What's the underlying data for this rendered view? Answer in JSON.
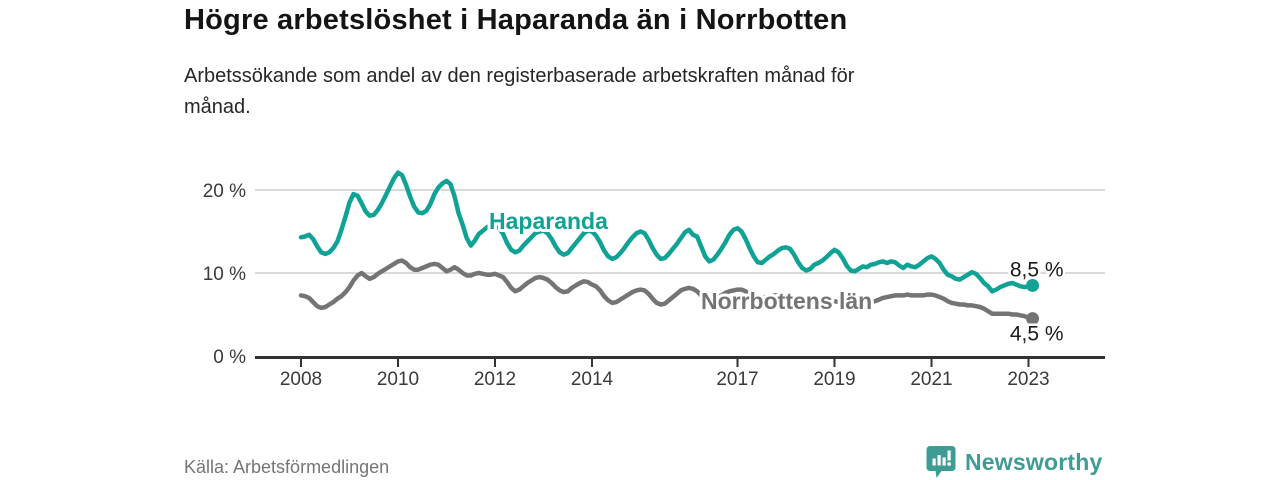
{
  "header": {
    "title": "Högre arbetslöshet i Haparanda än i Norrbotten",
    "subtitle_lines": [
      "Arbetssökande som andel av den registerbaserade arbetskraften månad för",
      "månad."
    ]
  },
  "footer": {
    "source": "Källa: Arbetsförmedlingen",
    "brand": "Newsworthy"
  },
  "colors": {
    "haparanda": "#10a295",
    "norrbotten": "#747474",
    "brand_teal": "#3e9c94",
    "grid": "#d9d9d9",
    "axis": "#333333",
    "tick_text": "#3a3a3a",
    "end_label": "#1a1a1a"
  },
  "chart_data": {
    "type": "line",
    "title": "Högre arbetslöshet i Haparanda än i Norrbotten",
    "xlabel": "",
    "ylabel": "Arbetssökande som andel av den registerbaserade arbetskraften (%)",
    "x_start_year": 2008,
    "x_resolution": "monthly",
    "first_point": "2008-01",
    "last_point": "2023-02",
    "ylim": [
      0,
      23
    ],
    "grid": "horizontal-only",
    "legend_position": "inline-labels",
    "xticks": [
      {
        "year": 2008,
        "label": "2008"
      },
      {
        "year": 2010,
        "label": "2010"
      },
      {
        "year": 2012,
        "label": "2012"
      },
      {
        "year": 2014,
        "label": "2014"
      },
      {
        "year": 2017,
        "label": "2017"
      },
      {
        "year": 2019,
        "label": "2019"
      },
      {
        "year": 2021,
        "label": "2021"
      },
      {
        "year": 2023,
        "label": "2023"
      }
    ],
    "yticks": [
      {
        "value": 0,
        "label": "0 %"
      },
      {
        "value": 10,
        "label": "10 %"
      },
      {
        "value": 20,
        "label": "20 %"
      }
    ],
    "series": [
      {
        "name": "Haparanda",
        "slug": "haparanda",
        "color_key": "haparanda",
        "annotation": "Haparanda",
        "end_label": "8,5 %",
        "end_value": 8.5,
        "monthly_values": [
          14.3,
          14.4,
          14.6,
          14.1,
          13.2,
          12.5,
          12.3,
          12.5,
          13.0,
          13.8,
          15.2,
          16.8,
          18.5,
          19.5,
          19.3,
          18.4,
          17.4,
          16.9,
          17.0,
          17.6,
          18.4,
          19.4,
          20.4,
          21.4,
          22.1,
          21.8,
          20.6,
          19.2,
          18.0,
          17.3,
          17.2,
          17.5,
          18.3,
          19.5,
          20.3,
          20.8,
          21.1,
          20.7,
          19.2,
          17.2,
          15.8,
          14.2,
          13.3,
          13.9,
          14.7,
          15.1,
          15.5,
          15.8,
          15.9,
          15.4,
          14.7,
          13.6,
          12.8,
          12.5,
          12.7,
          13.3,
          13.8,
          14.3,
          14.8,
          15.0,
          15.1,
          14.8,
          14.1,
          13.2,
          12.5,
          12.2,
          12.4,
          13.0,
          13.6,
          14.2,
          14.8,
          15.1,
          15.0,
          14.5,
          13.7,
          12.7,
          12.0,
          11.7,
          11.9,
          12.4,
          13.0,
          13.7,
          14.3,
          14.8,
          15.0,
          14.8,
          14.0,
          13.0,
          12.2,
          11.7,
          11.8,
          12.3,
          12.9,
          13.5,
          14.2,
          14.9,
          15.2,
          14.6,
          14.4,
          13.2,
          12.0,
          11.4,
          11.6,
          12.2,
          12.9,
          13.7,
          14.6,
          15.2,
          15.4,
          15.0,
          14.1,
          13.0,
          12.0,
          11.3,
          11.2,
          11.6,
          12.0,
          12.3,
          12.7,
          13.0,
          13.1,
          12.9,
          12.2,
          11.3,
          10.6,
          10.3,
          10.5,
          11.0,
          11.2,
          11.5,
          11.9,
          12.4,
          12.8,
          12.5,
          11.8,
          10.9,
          10.3,
          10.2,
          10.5,
          10.8,
          10.7,
          11.0,
          11.1,
          11.3,
          11.4,
          11.2,
          11.4,
          11.3,
          10.9,
          10.6,
          11.0,
          10.8,
          10.7,
          11.0,
          11.4,
          11.8,
          12.0,
          11.7,
          11.2,
          10.4,
          9.8,
          9.6,
          9.3,
          9.2,
          9.5,
          9.8,
          10.1,
          9.9,
          9.4,
          8.8,
          8.4,
          7.8,
          8.0,
          8.3,
          8.5,
          8.7,
          8.8,
          8.6,
          8.4,
          8.3,
          8.4,
          8.5
        ]
      },
      {
        "name": "Norrbottens län",
        "slug": "norrbotten",
        "color_key": "norrbotten",
        "annotation": "Norrbottens län",
        "end_label": "4,5 %",
        "end_value": 4.5,
        "monthly_values": [
          7.3,
          7.2,
          7.0,
          6.5,
          6.0,
          5.8,
          5.9,
          6.2,
          6.5,
          6.9,
          7.2,
          7.7,
          8.3,
          9.1,
          9.7,
          10.0,
          9.6,
          9.3,
          9.5,
          9.9,
          10.2,
          10.5,
          10.8,
          11.1,
          11.4,
          11.5,
          11.2,
          10.7,
          10.4,
          10.4,
          10.6,
          10.8,
          11.0,
          11.1,
          11.0,
          10.6,
          10.2,
          10.4,
          10.7,
          10.4,
          10.0,
          9.7,
          9.7,
          9.9,
          10.0,
          9.9,
          9.8,
          9.8,
          9.9,
          9.7,
          9.5,
          8.9,
          8.2,
          7.8,
          8.0,
          8.4,
          8.8,
          9.1,
          9.4,
          9.5,
          9.4,
          9.2,
          8.8,
          8.3,
          7.9,
          7.7,
          7.8,
          8.2,
          8.5,
          8.8,
          9.0,
          8.9,
          8.6,
          8.4,
          7.9,
          7.2,
          6.7,
          6.4,
          6.5,
          6.8,
          7.1,
          7.4,
          7.7,
          7.9,
          8.0,
          7.9,
          7.5,
          6.9,
          6.4,
          6.2,
          6.3,
          6.7,
          7.1,
          7.5,
          7.9,
          8.1,
          8.2,
          8.1,
          7.8,
          7.3,
          6.9,
          6.8,
          6.9,
          7.1,
          7.3,
          7.6,
          7.8,
          7.9,
          8.0,
          8.0,
          7.8,
          7.4,
          7.0,
          6.8,
          6.9,
          7.1,
          7.2,
          7.3,
          7.3,
          7.3,
          7.2,
          7.0,
          6.7,
          6.3,
          6.0,
          5.8,
          5.9,
          6.1,
          6.2,
          6.3,
          6.4,
          6.5,
          6.6,
          6.5,
          6.3,
          6.1,
          5.9,
          6.0,
          6.2,
          6.3,
          6.4,
          6.5,
          6.6,
          6.8,
          7.0,
          7.1,
          7.2,
          7.3,
          7.3,
          7.3,
          7.4,
          7.3,
          7.3,
          7.3,
          7.3,
          7.4,
          7.4,
          7.3,
          7.1,
          6.9,
          6.6,
          6.4,
          6.3,
          6.2,
          6.2,
          6.1,
          6.1,
          6.0,
          5.9,
          5.7,
          5.4,
          5.1,
          5.1,
          5.1,
          5.1,
          5.1,
          5.0,
          5.0,
          4.9,
          4.8,
          4.6,
          4.5
        ]
      }
    ]
  }
}
